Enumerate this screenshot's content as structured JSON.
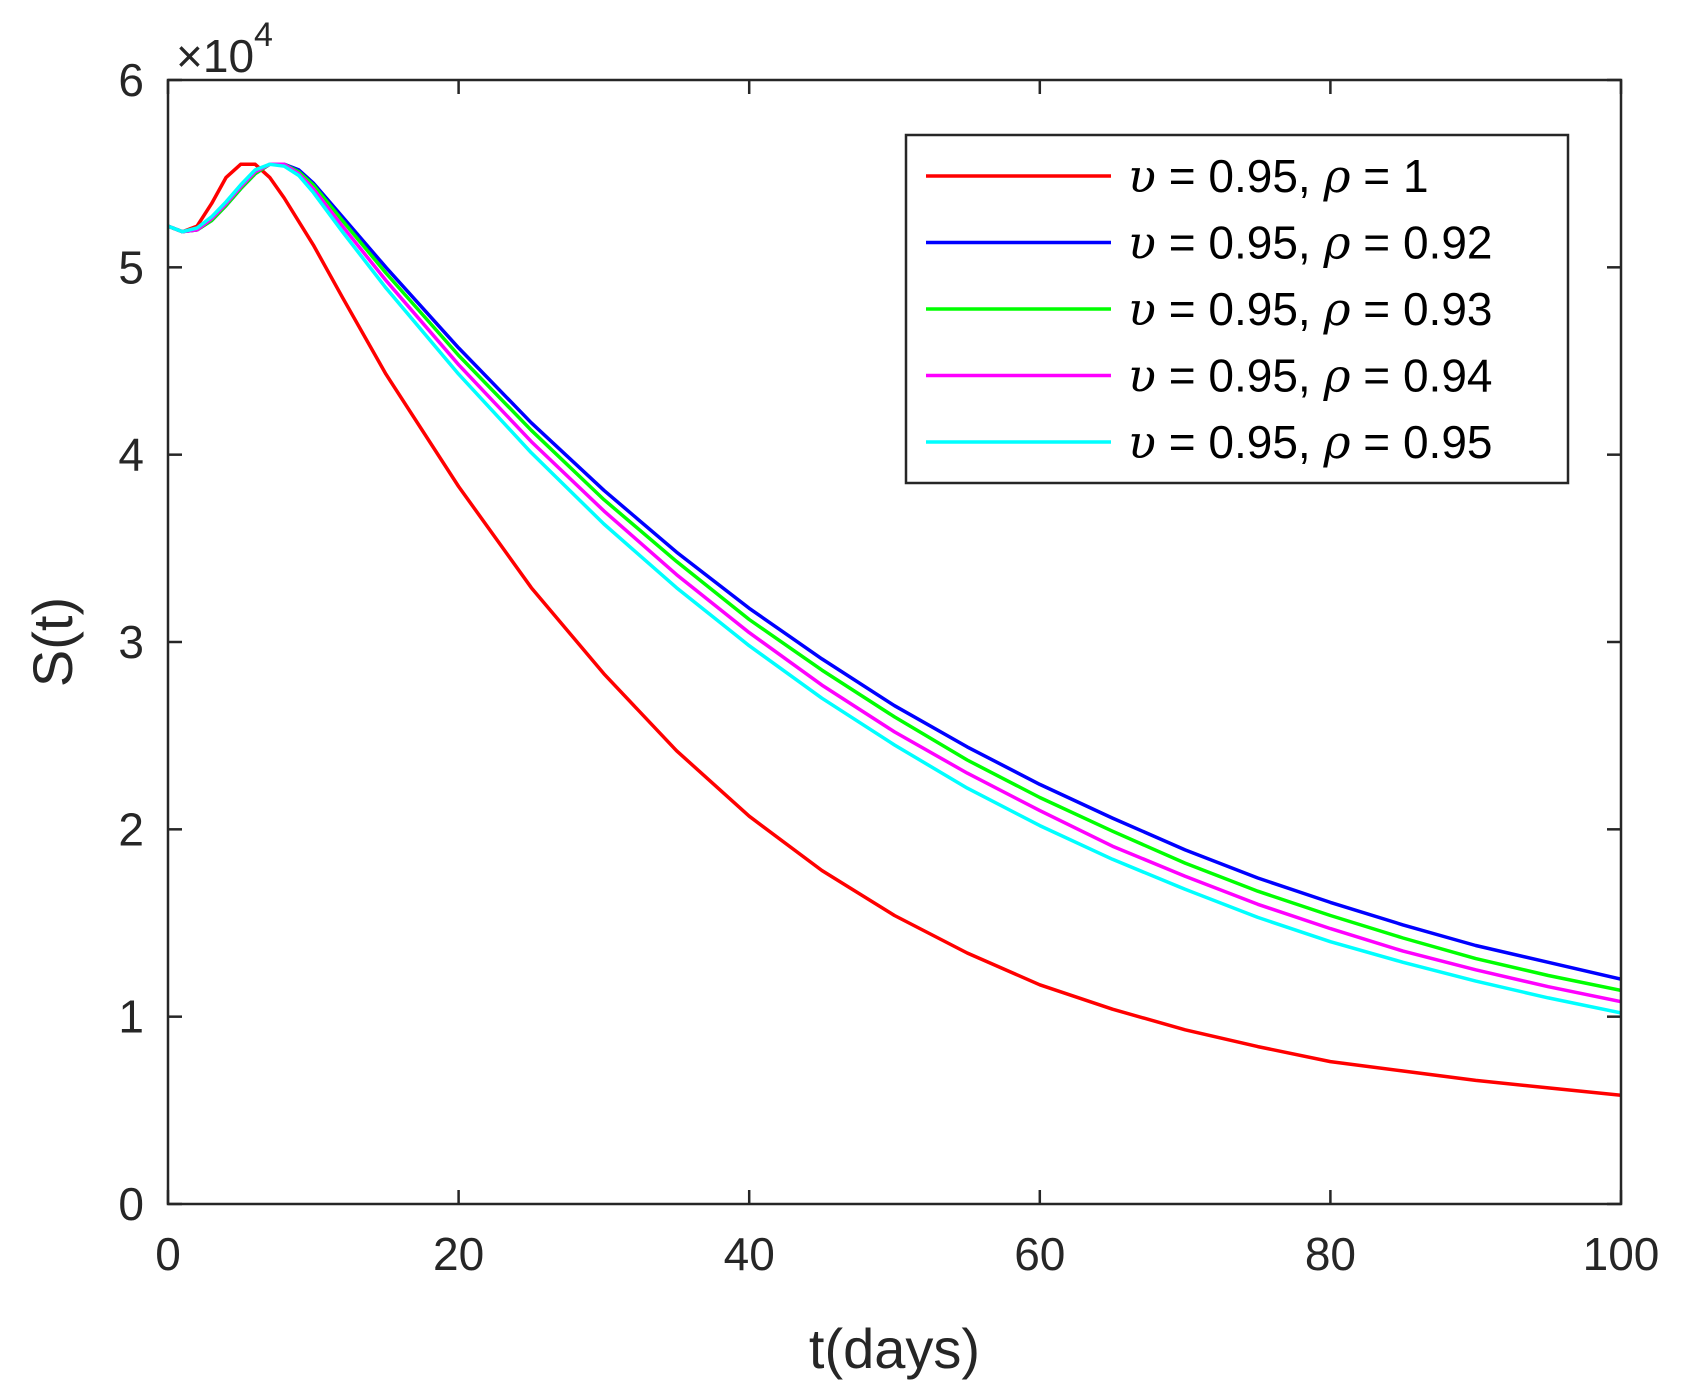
{
  "chart_data": {
    "type": "line",
    "xlabel": "t(days)",
    "ylabel": "S(t)",
    "y_exponent_label": "×10",
    "y_exponent": "4",
    "xlim": [
      0,
      100
    ],
    "ylim": [
      0,
      6
    ],
    "xticks": [
      0,
      20,
      40,
      60,
      80,
      100
    ],
    "yticks": [
      0,
      1,
      2,
      3,
      4,
      5,
      6
    ],
    "xtick_labels": [
      "0",
      "20",
      "40",
      "60",
      "80",
      "100"
    ],
    "ytick_labels": [
      "0",
      "1",
      "2",
      "3",
      "4",
      "5",
      "6"
    ],
    "legend_position": "top-right",
    "legend_symbols": {
      "upsilon": "υ",
      "rho": "ρ"
    },
    "series": [
      {
        "name": "υ = 0.95, ρ = 1",
        "label_parts": [
          "υ",
          " = 0.95, ",
          "ρ",
          " = 1"
        ],
        "color": "#ff0000",
        "x": [
          0,
          1,
          2,
          3,
          4,
          5,
          6,
          7,
          8,
          10,
          12,
          15,
          20,
          25,
          30,
          35,
          40,
          45,
          50,
          55,
          60,
          65,
          70,
          75,
          80,
          85,
          90,
          95,
          100
        ],
        "values": [
          5.22,
          5.19,
          5.22,
          5.34,
          5.48,
          5.55,
          5.55,
          5.48,
          5.37,
          5.12,
          4.84,
          4.43,
          3.83,
          3.29,
          2.83,
          2.42,
          2.07,
          1.78,
          1.54,
          1.34,
          1.17,
          1.04,
          0.93,
          0.84,
          0.76,
          0.71,
          0.66,
          0.62,
          0.58
        ]
      },
      {
        "name": "υ = 0.95, ρ = 0.92",
        "label_parts": [
          "υ",
          " = 0.95, ",
          "ρ",
          " = 0.92"
        ],
        "color": "#0000ff",
        "x": [
          0,
          1,
          2,
          3,
          4,
          5,
          6,
          7,
          8,
          9,
          10,
          12,
          15,
          20,
          25,
          30,
          35,
          40,
          45,
          50,
          55,
          60,
          65,
          70,
          75,
          80,
          85,
          90,
          95,
          100
        ],
        "values": [
          5.22,
          5.19,
          5.2,
          5.25,
          5.33,
          5.42,
          5.5,
          5.55,
          5.55,
          5.52,
          5.45,
          5.27,
          5.0,
          4.57,
          4.17,
          3.81,
          3.48,
          3.18,
          2.91,
          2.66,
          2.44,
          2.24,
          2.06,
          1.89,
          1.74,
          1.61,
          1.49,
          1.38,
          1.29,
          1.2
        ]
      },
      {
        "name": "υ = 0.95, ρ = 0.93",
        "label_parts": [
          "υ",
          " = 0.95, ",
          "ρ",
          " = 0.93"
        ],
        "color": "#00ff00",
        "x": [
          0,
          1,
          2,
          3,
          4,
          5,
          6,
          7,
          8,
          9,
          10,
          12,
          15,
          20,
          25,
          30,
          35,
          40,
          45,
          50,
          55,
          60,
          65,
          70,
          75,
          80,
          85,
          90,
          95,
          100
        ],
        "values": [
          5.22,
          5.19,
          5.2,
          5.25,
          5.33,
          5.42,
          5.5,
          5.55,
          5.55,
          5.51,
          5.44,
          5.25,
          4.97,
          4.53,
          4.13,
          3.76,
          3.43,
          3.12,
          2.85,
          2.6,
          2.37,
          2.17,
          1.99,
          1.82,
          1.67,
          1.54,
          1.42,
          1.31,
          1.22,
          1.14
        ]
      },
      {
        "name": "υ = 0.95, ρ = 0.94",
        "label_parts": [
          "υ",
          " = 0.95, ",
          "ρ",
          " = 0.94"
        ],
        "color": "#ff00ff",
        "x": [
          0,
          1,
          2,
          3,
          4,
          5,
          6,
          7,
          8,
          9,
          10,
          12,
          15,
          20,
          25,
          30,
          35,
          40,
          45,
          50,
          55,
          60,
          65,
          70,
          75,
          80,
          85,
          90,
          95,
          100
        ],
        "values": [
          5.22,
          5.19,
          5.2,
          5.26,
          5.34,
          5.43,
          5.51,
          5.55,
          5.55,
          5.5,
          5.42,
          5.22,
          4.93,
          4.48,
          4.07,
          3.7,
          3.36,
          3.05,
          2.77,
          2.52,
          2.3,
          2.1,
          1.91,
          1.75,
          1.6,
          1.47,
          1.35,
          1.25,
          1.16,
          1.08
        ]
      },
      {
        "name": "υ = 0.95, ρ = 0.95",
        "label_parts": [
          "υ",
          " = 0.95, ",
          "ρ",
          " = 0.95"
        ],
        "color": "#00ffff",
        "x": [
          0,
          1,
          2,
          3,
          4,
          5,
          6,
          7,
          8,
          9,
          10,
          12,
          15,
          20,
          25,
          30,
          35,
          40,
          45,
          50,
          55,
          60,
          65,
          70,
          75,
          80,
          85,
          90,
          95,
          100
        ],
        "values": [
          5.22,
          5.19,
          5.21,
          5.27,
          5.35,
          5.44,
          5.52,
          5.55,
          5.54,
          5.49,
          5.4,
          5.19,
          4.89,
          4.43,
          4.01,
          3.63,
          3.29,
          2.98,
          2.7,
          2.45,
          2.22,
          2.02,
          1.84,
          1.68,
          1.53,
          1.4,
          1.29,
          1.19,
          1.1,
          1.02
        ]
      }
    ]
  }
}
